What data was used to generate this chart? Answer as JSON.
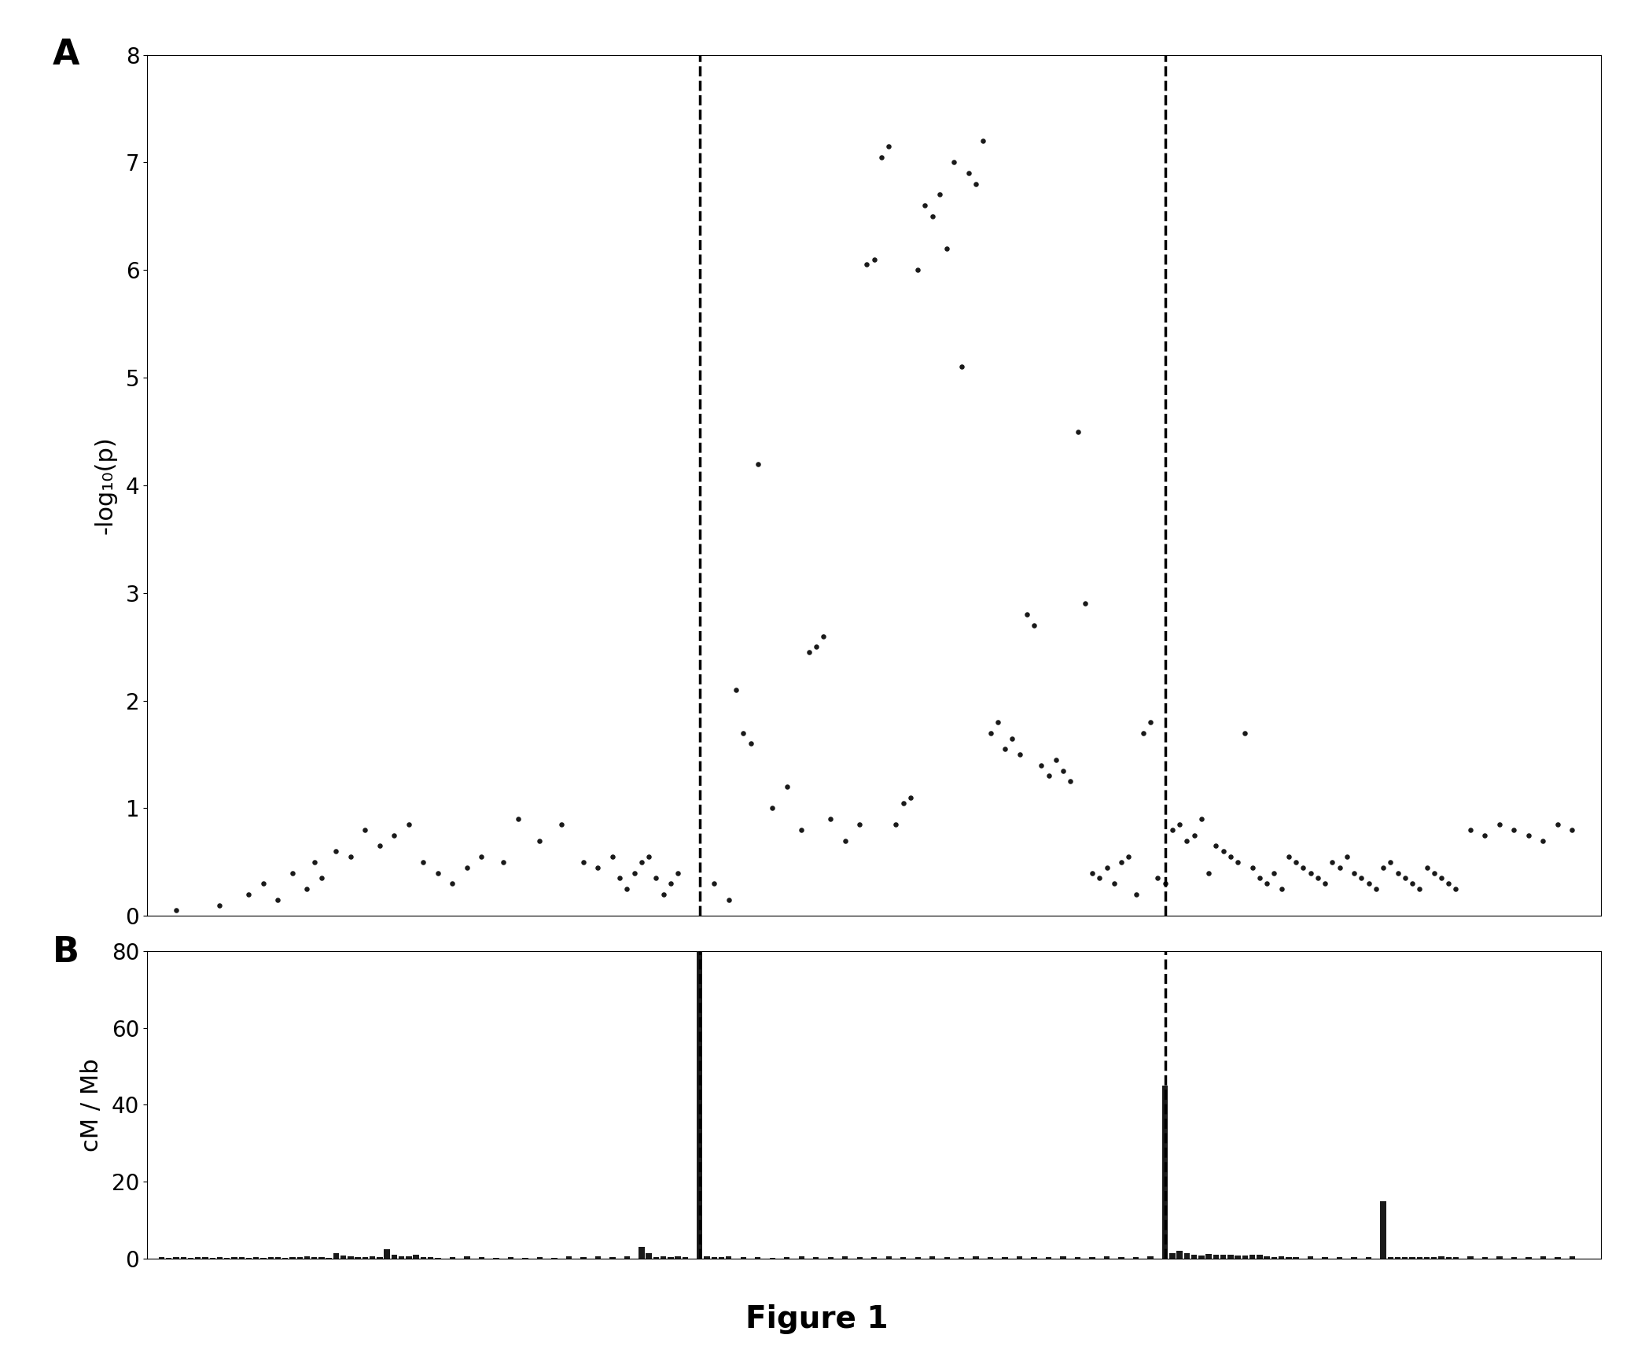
{
  "title": "Figure 1",
  "panel_A_label": "A",
  "panel_B_label": "B",
  "ylabel_A": "-log₁₀(p)",
  "ylabel_B": "cM / Mb",
  "ylim_A": [
    0,
    8
  ],
  "ylim_B": [
    0,
    80
  ],
  "yticks_A": [
    0,
    1,
    2,
    3,
    4,
    5,
    6,
    7,
    8
  ],
  "yticks_B": [
    0,
    20,
    40,
    60,
    80
  ],
  "dashed_line_1": 0.38,
  "dashed_line_2": 0.7,
  "dot_color": "#1a1a1a",
  "dot_size": 22,
  "background_color": "#ffffff",
  "scatter_A_x": [
    0.02,
    0.05,
    0.07,
    0.08,
    0.09,
    0.1,
    0.11,
    0.115,
    0.12,
    0.13,
    0.14,
    0.15,
    0.16,
    0.17,
    0.18,
    0.19,
    0.2,
    0.21,
    0.22,
    0.23,
    0.245,
    0.255,
    0.27,
    0.285,
    0.3,
    0.31,
    0.32,
    0.325,
    0.33,
    0.335,
    0.34,
    0.345,
    0.35,
    0.355,
    0.36,
    0.365,
    0.39,
    0.4,
    0.405,
    0.41,
    0.415,
    0.42,
    0.43,
    0.44,
    0.45,
    0.455,
    0.46,
    0.465,
    0.47,
    0.48,
    0.49,
    0.495,
    0.5,
    0.505,
    0.51,
    0.515,
    0.52,
    0.525,
    0.53,
    0.535,
    0.54,
    0.545,
    0.55,
    0.555,
    0.56,
    0.565,
    0.57,
    0.575,
    0.58,
    0.585,
    0.59,
    0.595,
    0.6,
    0.605,
    0.61,
    0.615,
    0.62,
    0.625,
    0.63,
    0.635,
    0.64,
    0.645,
    0.65,
    0.655,
    0.66,
    0.665,
    0.67,
    0.675,
    0.68,
    0.685,
    0.69,
    0.695,
    0.7,
    0.705,
    0.71,
    0.715,
    0.72,
    0.725,
    0.73,
    0.735,
    0.74,
    0.745,
    0.75,
    0.755,
    0.76,
    0.765,
    0.77,
    0.775,
    0.78,
    0.785,
    0.79,
    0.795,
    0.8,
    0.805,
    0.81,
    0.815,
    0.82,
    0.825,
    0.83,
    0.835,
    0.84,
    0.845,
    0.85,
    0.855,
    0.86,
    0.865,
    0.87,
    0.875,
    0.88,
    0.885,
    0.89,
    0.895,
    0.9,
    0.91,
    0.92,
    0.93,
    0.94,
    0.95,
    0.96,
    0.97,
    0.98
  ],
  "scatter_A_y": [
    0.05,
    0.1,
    0.2,
    0.3,
    0.15,
    0.4,
    0.25,
    0.5,
    0.35,
    0.6,
    0.55,
    0.8,
    0.65,
    0.75,
    0.85,
    0.5,
    0.4,
    0.3,
    0.45,
    0.55,
    0.5,
    0.9,
    0.7,
    0.85,
    0.5,
    0.45,
    0.55,
    0.35,
    0.25,
    0.4,
    0.5,
    0.55,
    0.35,
    0.2,
    0.3,
    0.4,
    0.3,
    0.15,
    2.1,
    1.7,
    1.6,
    4.2,
    1.0,
    1.2,
    0.8,
    2.45,
    2.5,
    2.6,
    0.9,
    0.7,
    0.85,
    6.05,
    6.1,
    7.05,
    7.15,
    0.85,
    1.05,
    1.1,
    6.0,
    6.6,
    6.5,
    6.7,
    6.2,
    7.0,
    5.1,
    6.9,
    6.8,
    7.2,
    1.7,
    1.8,
    1.55,
    1.65,
    1.5,
    2.8,
    2.7,
    1.4,
    1.3,
    1.45,
    1.35,
    1.25,
    4.5,
    2.9,
    0.4,
    0.35,
    0.45,
    0.3,
    0.5,
    0.55,
    0.2,
    1.7,
    1.8,
    0.35,
    0.3,
    0.8,
    0.85,
    0.7,
    0.75,
    0.9,
    0.4,
    0.65,
    0.6,
    0.55,
    0.5,
    1.7,
    0.45,
    0.35,
    0.3,
    0.4,
    0.25,
    0.55,
    0.5,
    0.45,
    0.4,
    0.35,
    0.3,
    0.5,
    0.45,
    0.55,
    0.4,
    0.35,
    0.3,
    0.25,
    0.45,
    0.5,
    0.4,
    0.35,
    0.3,
    0.25,
    0.45,
    0.4,
    0.35,
    0.3,
    0.25,
    0.8,
    0.75,
    0.85,
    0.8,
    0.75,
    0.7,
    0.85,
    0.8
  ],
  "bar_B_x": [
    0.01,
    0.015,
    0.02,
    0.025,
    0.03,
    0.035,
    0.04,
    0.045,
    0.05,
    0.055,
    0.06,
    0.065,
    0.07,
    0.075,
    0.08,
    0.085,
    0.09,
    0.095,
    0.1,
    0.105,
    0.11,
    0.115,
    0.12,
    0.125,
    0.13,
    0.135,
    0.14,
    0.145,
    0.15,
    0.155,
    0.16,
    0.165,
    0.17,
    0.175,
    0.18,
    0.185,
    0.19,
    0.195,
    0.2,
    0.21,
    0.22,
    0.23,
    0.24,
    0.25,
    0.26,
    0.27,
    0.28,
    0.29,
    0.3,
    0.31,
    0.32,
    0.33,
    0.34,
    0.345,
    0.35,
    0.355,
    0.36,
    0.365,
    0.37,
    0.38,
    0.385,
    0.39,
    0.395,
    0.4,
    0.41,
    0.42,
    0.43,
    0.44,
    0.45,
    0.46,
    0.47,
    0.48,
    0.49,
    0.5,
    0.51,
    0.52,
    0.53,
    0.54,
    0.55,
    0.56,
    0.57,
    0.58,
    0.59,
    0.6,
    0.61,
    0.62,
    0.63,
    0.64,
    0.65,
    0.66,
    0.67,
    0.68,
    0.69,
    0.7,
    0.705,
    0.71,
    0.715,
    0.72,
    0.725,
    0.73,
    0.735,
    0.74,
    0.745,
    0.75,
    0.755,
    0.76,
    0.765,
    0.77,
    0.775,
    0.78,
    0.785,
    0.79,
    0.8,
    0.81,
    0.82,
    0.83,
    0.84,
    0.85,
    0.855,
    0.86,
    0.865,
    0.87,
    0.875,
    0.88,
    0.885,
    0.89,
    0.895,
    0.9,
    0.91,
    0.92,
    0.93,
    0.94,
    0.95,
    0.96,
    0.97,
    0.98
  ],
  "bar_B_height": [
    0.3,
    0.2,
    0.3,
    0.4,
    0.2,
    0.3,
    0.4,
    0.2,
    0.3,
    0.2,
    0.4,
    0.3,
    0.2,
    0.3,
    0.2,
    0.4,
    0.3,
    0.2,
    0.3,
    0.4,
    0.5,
    0.4,
    0.3,
    0.2,
    1.5,
    0.8,
    0.5,
    0.3,
    0.3,
    0.5,
    0.4,
    2.5,
    1.0,
    0.5,
    0.5,
    1.0,
    0.3,
    0.3,
    0.2,
    0.3,
    0.5,
    0.3,
    0.2,
    0.3,
    0.2,
    0.3,
    0.2,
    0.5,
    0.3,
    0.5,
    0.3,
    0.5,
    3.0,
    1.5,
    0.3,
    0.5,
    0.3,
    0.5,
    0.3,
    80.0,
    0.5,
    0.3,
    0.4,
    0.5,
    0.3,
    0.4,
    0.2,
    0.3,
    0.5,
    0.3,
    0.4,
    0.5,
    0.3,
    0.4,
    0.5,
    0.3,
    0.4,
    0.5,
    0.3,
    0.4,
    0.5,
    0.3,
    0.4,
    0.5,
    0.3,
    0.4,
    0.5,
    0.3,
    0.4,
    0.5,
    0.3,
    0.4,
    0.5,
    45.0,
    1.5,
    2.0,
    1.5,
    1.0,
    0.8,
    1.2,
    0.9,
    1.1,
    1.0,
    0.8,
    0.7,
    0.9,
    1.1,
    0.5,
    0.3,
    0.5,
    0.3,
    0.4,
    0.5,
    0.3,
    0.4,
    0.3,
    0.4,
    15.0,
    0.3,
    0.4,
    0.3,
    0.4,
    0.3,
    0.4,
    0.3,
    0.5,
    0.3,
    0.4,
    0.5,
    0.3,
    0.5,
    0.3,
    0.4,
    0.5,
    0.3,
    0.5
  ]
}
